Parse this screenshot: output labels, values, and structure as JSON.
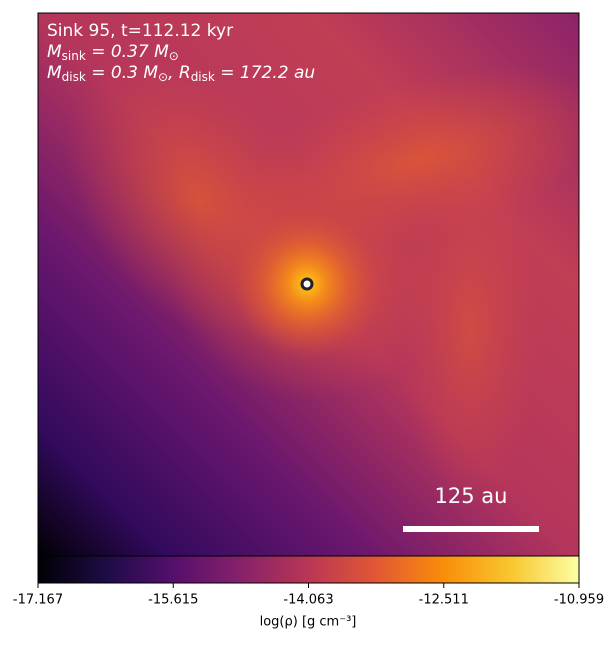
{
  "chart_data": {
    "type": "heatmap",
    "annotations": [
      {
        "text": "Sink 95, t=112.12 kyr"
      },
      {
        "parts": [
          {
            "text": "M"
          },
          {
            "sub": "sink"
          },
          {
            "text": " = 0.37 M"
          },
          {
            "sub": "⊙"
          }
        ]
      },
      {
        "parts": [
          {
            "text": "M"
          },
          {
            "sub": "disk"
          },
          {
            "text": " = 0.3 M"
          },
          {
            "sub": "⊙"
          },
          {
            "text": ", R"
          },
          {
            "sub": "disk"
          },
          {
            "text": " = 172.2 au"
          }
        ]
      }
    ],
    "scale_bar_label": "125 au",
    "colorbar": {
      "label": "log(ρ) [g cm⁻³]",
      "lim": [
        -17.167,
        -10.959
      ],
      "ticks": [
        -17.167,
        -15.615,
        -14.063,
        -12.511,
        -10.959
      ],
      "colormap": "inferno"
    }
  }
}
